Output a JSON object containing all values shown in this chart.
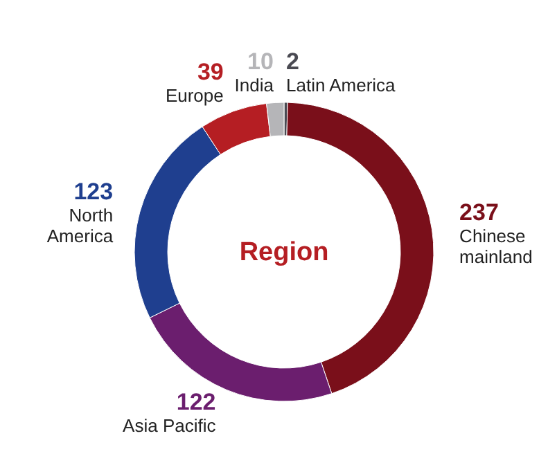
{
  "chart_data": {
    "type": "donut",
    "title": "Region",
    "categories": [
      "Latin America",
      "Chinese mainland",
      "Asia Pacific",
      "North America",
      "Europe",
      "India"
    ],
    "values": [
      2,
      237,
      122,
      123,
      39,
      10
    ],
    "colors": [
      "#4a4a52",
      "#7a0f1a",
      "#6b1e6e",
      "#1f3f8f",
      "#b51e23",
      "#b5b5b8"
    ],
    "data_labels": true
  }
}
